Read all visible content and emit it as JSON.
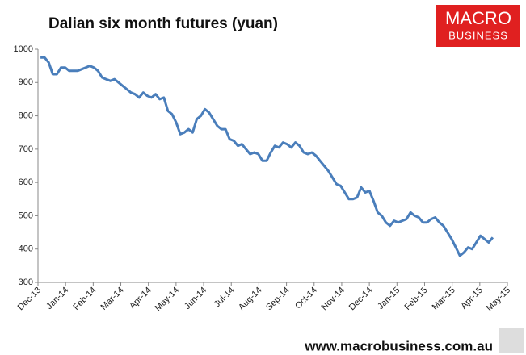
{
  "chart_data": {
    "type": "line",
    "title": "Dalian six month futures (yuan)",
    "logo_top": "MACRO",
    "logo_bottom": "BUSINESS",
    "footer": "www.macrobusiness.com.au",
    "xtick_labels": [
      "Dec-13",
      "Jan-14",
      "Feb-14",
      "Mar-14",
      "Apr-14",
      "May-14",
      "Jun-14",
      "Jul-14",
      "Aug-14",
      "Sep-14",
      "Oct-14",
      "Nov-14",
      "Dec-14",
      "Jan-15",
      "Feb-15",
      "Mar-15",
      "Apr-15",
      "May-15"
    ],
    "color": "#4a7ebb",
    "ylim": [
      300,
      1000
    ],
    "yticks": [
      300,
      400,
      500,
      600,
      700,
      800,
      900,
      1000
    ],
    "grid": false,
    "values": [
      975,
      975,
      960,
      925,
      925,
      945,
      945,
      935,
      935,
      935,
      940,
      945,
      950,
      945,
      935,
      915,
      910,
      905,
      910,
      900,
      890,
      880,
      870,
      865,
      855,
      870,
      860,
      855,
      865,
      850,
      855,
      815,
      805,
      780,
      745,
      750,
      760,
      750,
      790,
      800,
      820,
      810,
      790,
      770,
      760,
      760,
      730,
      725,
      710,
      715,
      700,
      685,
      690,
      685,
      665,
      665,
      690,
      710,
      705,
      720,
      715,
      705,
      720,
      710,
      690,
      685,
      690,
      680,
      665,
      650,
      635,
      615,
      595,
      590,
      570,
      550,
      550,
      555,
      585,
      570,
      575,
      545,
      510,
      500,
      480,
      470,
      485,
      480,
      485,
      490,
      510,
      500,
      495,
      480,
      480,
      490,
      495,
      480,
      470,
      450,
      430,
      405,
      380,
      390,
      405,
      400,
      420,
      440,
      430,
      420,
      435
    ]
  }
}
